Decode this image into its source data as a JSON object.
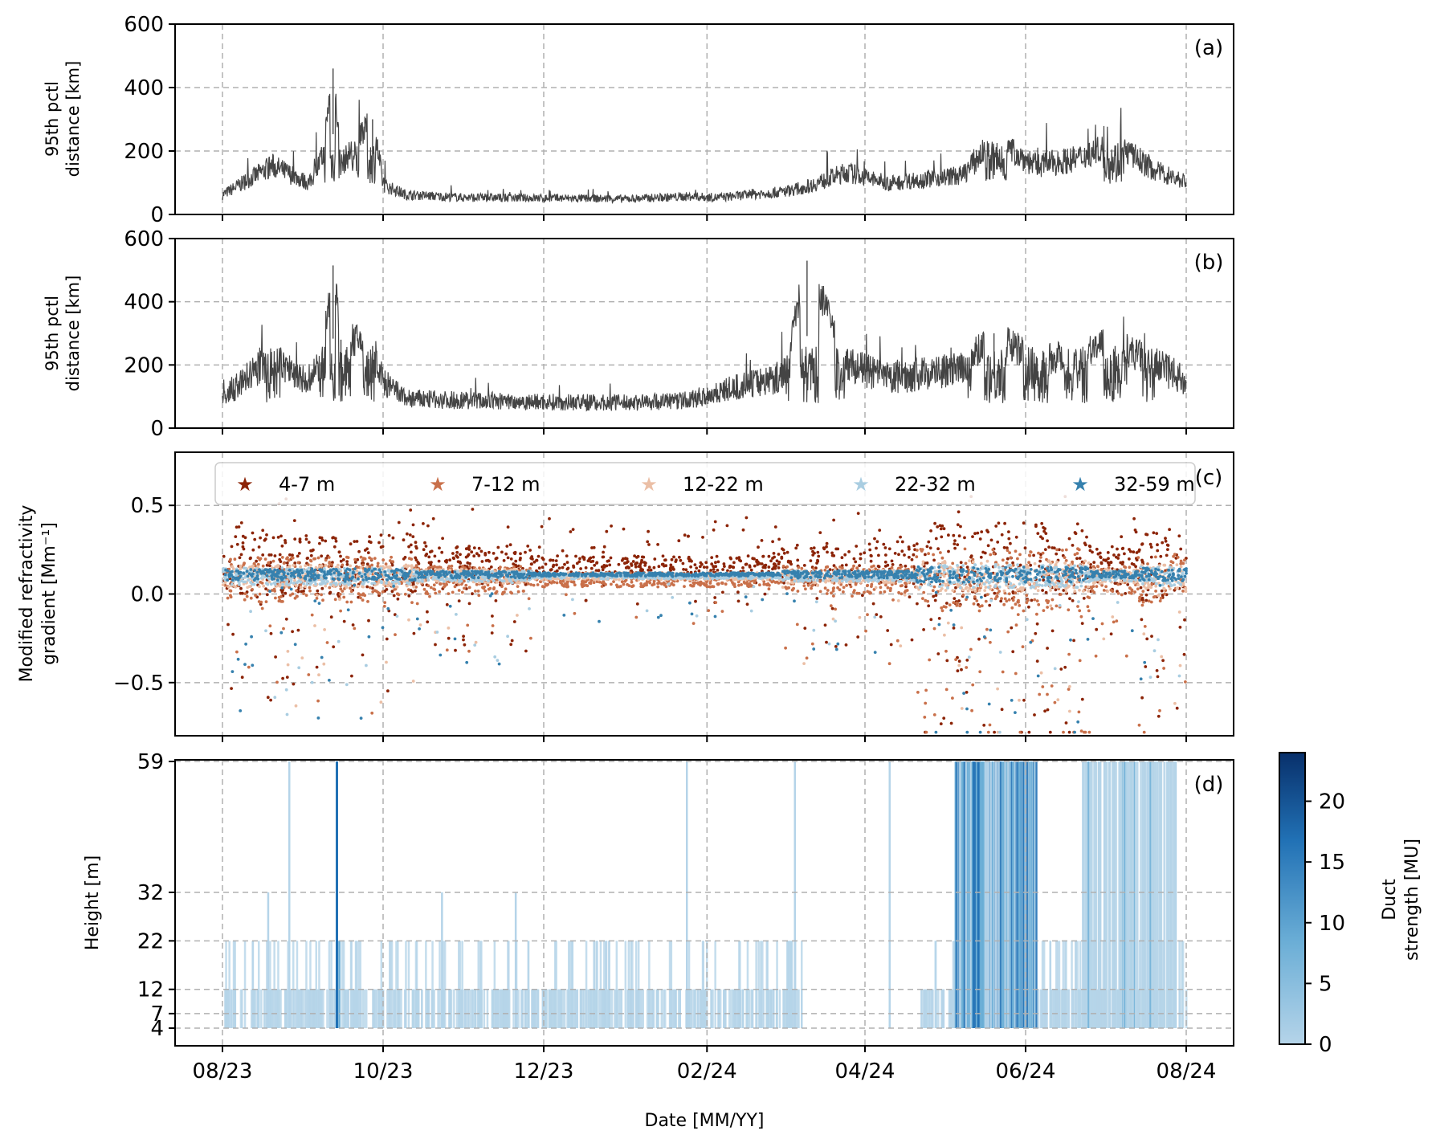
{
  "chart_data": [
    {
      "panel": "a",
      "type": "line",
      "panel_label": "(a)",
      "ylabel_lines": [
        "95th pctl",
        "distance [km]"
      ],
      "ylim": [
        0,
        600
      ],
      "yticks": [
        0,
        200,
        400,
        600
      ],
      "grid": true,
      "line_color": "#444444",
      "series": [
        {
          "x": [
            "2023-08-01",
            "2023-08-20",
            "2023-09-03",
            "2023-09-08",
            "2023-09-12",
            "2023-09-15",
            "2023-09-20",
            "2023-09-27",
            "2023-10-01",
            "2023-10-10",
            "2023-11-01",
            "2023-12-01",
            "2024-01-01",
            "2024-01-25",
            "2024-02-05",
            "2024-03-01",
            "2024-03-10",
            "2024-03-25",
            "2024-04-10",
            "2024-04-25",
            "2024-05-08",
            "2024-05-20",
            "2024-06-05",
            "2024-06-20",
            "2024-07-05",
            "2024-07-20",
            "2024-08-01"
          ],
          "y": [
            60,
            150,
            95,
            175,
            460,
            150,
            210,
            300,
            90,
            60,
            52,
            50,
            48,
            55,
            52,
            70,
            85,
            130,
            95,
            110,
            120,
            230,
            150,
            170,
            220,
            135,
            100
          ]
        }
      ]
    },
    {
      "panel": "b",
      "type": "line",
      "panel_label": "(b)",
      "ylabel_lines": [
        "95th pctl",
        "distance [km]"
      ],
      "ylim": [
        0,
        600
      ],
      "yticks": [
        0,
        200,
        400,
        600
      ],
      "grid": true,
      "line_color": "#444444",
      "series": [
        {
          "x": [
            "2023-08-01",
            "2023-08-20",
            "2023-09-03",
            "2023-09-08",
            "2023-09-12",
            "2023-09-15",
            "2023-09-27",
            "2023-10-01",
            "2023-10-10",
            "2023-11-01",
            "2023-12-01",
            "2024-01-01",
            "2024-01-25",
            "2024-02-05",
            "2024-03-01",
            "2024-03-10",
            "2024-03-25",
            "2024-04-10",
            "2024-04-25",
            "2024-05-08",
            "2024-05-20",
            "2024-06-05",
            "2024-06-20",
            "2024-07-05",
            "2024-07-20",
            "2024-08-01"
          ],
          "y": [
            90,
            220,
            130,
            220,
            515,
            280,
            260,
            140,
            90,
            85,
            80,
            78,
            85,
            110,
            160,
            530,
            200,
            150,
            170,
            180,
            300,
            200,
            240,
            260,
            200,
            140
          ]
        }
      ]
    },
    {
      "panel": "c",
      "type": "scatter",
      "panel_label": "(c)",
      "ylabel_lines": [
        "Modified refractivity",
        "gradient [Mm⁻¹]"
      ],
      "ylim": [
        -0.8,
        0.8
      ],
      "yticks": [
        -0.5,
        0.0,
        0.5
      ],
      "ytick_labels": [
        "−0.5",
        "0.0",
        "0.5"
      ],
      "grid": true,
      "legend_position": "top",
      "legend_marker": "★",
      "series": [
        {
          "name": "4-7 m",
          "color": "#8c2407",
          "center": 0.16,
          "spread": 0.11,
          "neg_frac": 0.1
        },
        {
          "name": "7-12 m",
          "color": "#c9704a",
          "center": 0.08,
          "spread": 0.08,
          "neg_frac": 0.08
        },
        {
          "name": "12-22 m",
          "color": "#ebbfa6",
          "center": 0.1,
          "spread": 0.04,
          "neg_frac": 0.03
        },
        {
          "name": "22-32 m",
          "color": "#a9cde1",
          "center": 0.1,
          "spread": 0.03,
          "neg_frac": 0.03
        },
        {
          "name": "32-59 m",
          "color": "#3681ae",
          "center": 0.11,
          "spread": 0.02,
          "neg_frac": 0.04
        }
      ]
    },
    {
      "panel": "d",
      "type": "heatmap",
      "panel_label": "(d)",
      "ylabel": "Height [m]",
      "xlabel": "Date [MM/YY]",
      "ylim": [
        4,
        59
      ],
      "yticks": [
        4,
        7,
        12,
        22,
        32,
        59
      ],
      "x_ticks": [
        "08/23",
        "10/23",
        "12/23",
        "02/24",
        "04/24",
        "06/24",
        "08/24"
      ],
      "grid": true,
      "colorbar": {
        "label_lines": [
          "Duct",
          "strength [MU]"
        ],
        "range": [
          0,
          24
        ],
        "ticks": [
          0,
          5,
          10,
          15,
          20
        ],
        "colors": [
          "#b5d4e9",
          "#6baed6",
          "#2171b5",
          "#08306b"
        ]
      },
      "duct_events": [
        {
          "date": "2023-08-18",
          "top": 32,
          "strength": 2
        },
        {
          "date": "2023-08-26",
          "top": 59,
          "strength": 4
        },
        {
          "date": "2023-09-13",
          "top": 59,
          "strength": 18
        },
        {
          "date": "2023-09-14",
          "top": 22,
          "strength": 10
        },
        {
          "date": "2023-10-23",
          "top": 32,
          "strength": 3
        },
        {
          "date": "2023-11-20",
          "top": 32,
          "strength": 2
        },
        {
          "date": "2024-01-24",
          "top": 59,
          "strength": 2
        },
        {
          "date": "2024-03-05",
          "top": 59,
          "strength": 2
        },
        {
          "date": "2024-04-10",
          "top": 59,
          "strength": 2
        },
        {
          "date": "2024-05-05",
          "top": 59,
          "strength": 8
        },
        {
          "date": "2024-05-20",
          "top": 59,
          "strength": 15
        },
        {
          "date": "2024-05-28",
          "top": 59,
          "strength": 18
        },
        {
          "date": "2024-06-25",
          "top": 59,
          "strength": 6
        },
        {
          "date": "2024-07-12",
          "top": 59,
          "strength": 5
        }
      ]
    }
  ]
}
